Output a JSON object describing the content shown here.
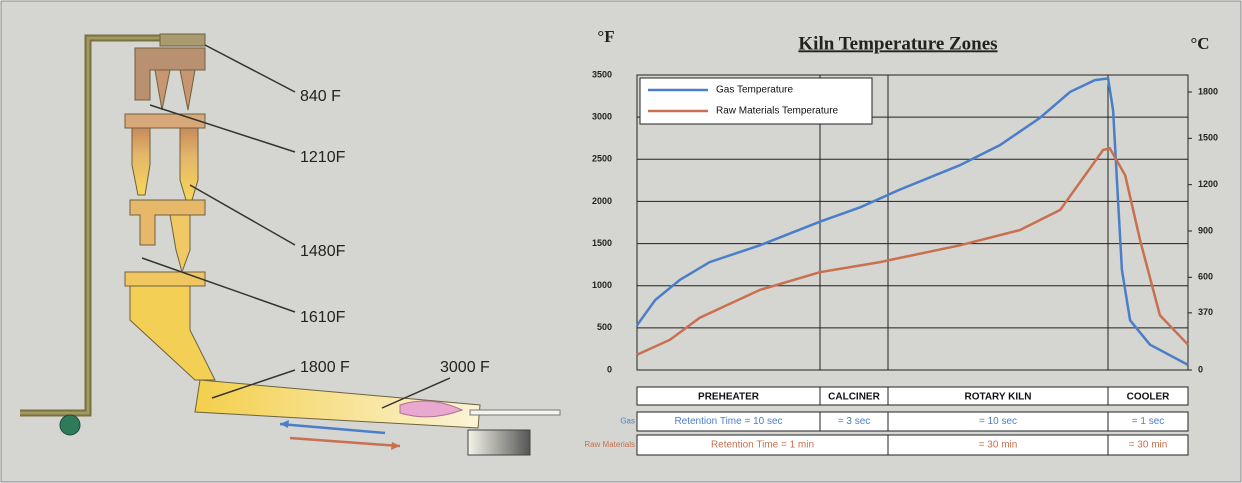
{
  "chart_data": {
    "type": "line",
    "title": "Kiln Temperature Zones",
    "ylabel": "°F",
    "y2label": "°C",
    "xlim": [
      0,
      100
    ],
    "ylim": [
      0,
      3500
    ],
    "yticks": [
      0,
      500,
      1000,
      1500,
      2000,
      2500,
      3000,
      3500
    ],
    "y2lim": [
      0,
      1910
    ],
    "y2ticks": [
      0,
      370,
      600,
      900,
      1200,
      1500,
      1800
    ],
    "grid": true,
    "legend": "upper-left",
    "series": [
      {
        "name": "Gas Temperature",
        "color": "#4a7fc8",
        "x": [
          0,
          3.3,
          7.8,
          13.2,
          22.3,
          33.2,
          40.5,
          47.7,
          58.6,
          65.9,
          73.1,
          78.6,
          83.1,
          85.5,
          86.4,
          87.3,
          88.0,
          89.5,
          93.1,
          100
        ],
        "values": [
          530,
          830,
          1070,
          1280,
          1480,
          1760,
          1930,
          2140,
          2430,
          2670,
          2990,
          3300,
          3440,
          3460,
          3080,
          2020,
          1190,
          590,
          300,
          60
        ]
      },
      {
        "name": "Raw Materials Temperature",
        "color": "#c8704f",
        "x": [
          0,
          6.0,
          11.4,
          22.3,
          33.2,
          44.1,
          58.6,
          69.5,
          76.8,
          81.3,
          84.6,
          85.8,
          88.6,
          91.3,
          94.9,
          100
        ],
        "values": [
          180,
          360,
          620,
          950,
          1160,
          1280,
          1480,
          1660,
          1900,
          2310,
          2610,
          2630,
          2310,
          1540,
          650,
          300
        ]
      }
    ]
  },
  "table": {
    "header": [
      "PREHEATER",
      "CALCINER",
      "ROTARY KILN",
      "COOLER"
    ],
    "rows": [
      {
        "label": "Gas",
        "cells": [
          "Retention Time = 10 sec",
          "= 3 sec",
          "= 10 sec",
          "= 1 sec"
        ]
      },
      {
        "label": "Raw Materials",
        "cells": [
          "Retention Time = 1 min",
          "= 30 min",
          "= 30 min"
        ]
      }
    ]
  },
  "diagram": {
    "labels": [
      "840 F",
      "1210F",
      "1480F",
      "1610F",
      "1800 F",
      "3000 F"
    ]
  }
}
